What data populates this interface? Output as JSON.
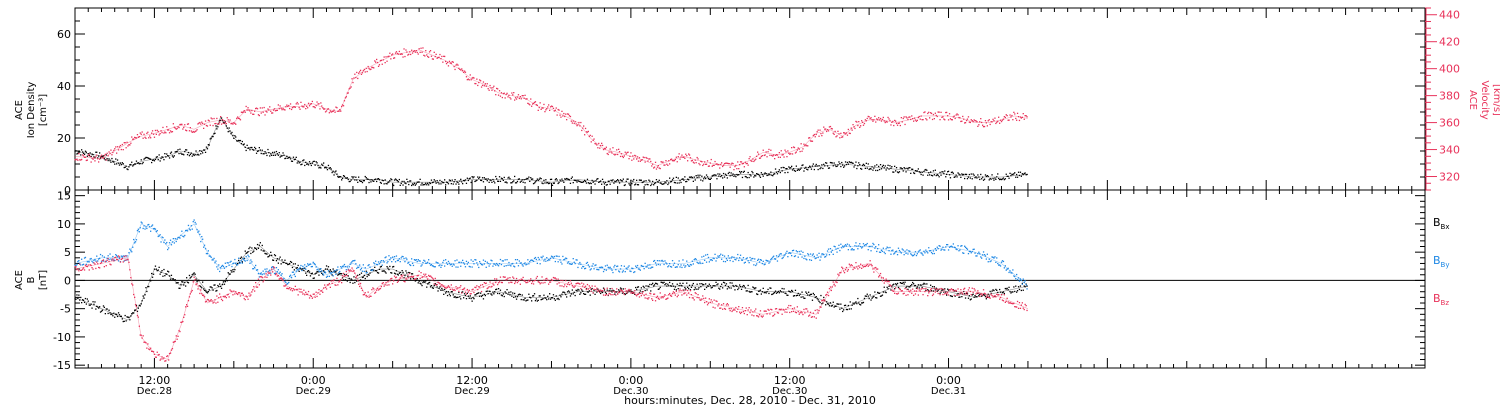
{
  "colors": {
    "black": "#000000",
    "red": "#e8325a",
    "blue": "#1e88e5"
  },
  "xaxis": {
    "title": "hours:minutes, Dec. 28, 2010 - Dec. 31, 2010",
    "range_hours": [
      -6,
      96
    ],
    "ticks": [
      {
        "hours": 0,
        "time": "12:00",
        "date": "Dec.28"
      },
      {
        "hours": 12,
        "time": "0:00",
        "date": "Dec.29"
      },
      {
        "hours": 24,
        "time": "12:00",
        "date": "Dec.29"
      },
      {
        "hours": 36,
        "time": "0:00",
        "date": "Dec.30"
      },
      {
        "hours": 48,
        "time": "12:00",
        "date": "Dec.30"
      },
      {
        "hours": 60,
        "time": "0:00",
        "date": "Dec.31"
      }
    ]
  },
  "chart_data": [
    {
      "type": "line",
      "panel": "top",
      "ylabel_left": [
        "ACE",
        "Ion Density",
        "[cm⁻³]"
      ],
      "ylabel_right": [
        "ACE",
        "Velocity",
        "[km/s]"
      ],
      "ylim_left": [
        0,
        70
      ],
      "yticks_left": [
        0,
        20,
        40,
        60
      ],
      "ylim_right": [
        310,
        445
      ],
      "yticks_right": [
        320,
        340,
        360,
        380,
        400,
        420,
        440
      ],
      "series": [
        {
          "axis": "left",
          "color": "black",
          "x": [
            -6,
            -4,
            -2,
            -1,
            0,
            1,
            2,
            3,
            4,
            5,
            6,
            7,
            8,
            9,
            10,
            11,
            12,
            13,
            14,
            15,
            16,
            17,
            18,
            20,
            22,
            24,
            26,
            28,
            30,
            32,
            34,
            36,
            38,
            40,
            42,
            44,
            46,
            48,
            50,
            52,
            54,
            56,
            58,
            60,
            62,
            64,
            66
          ],
          "y": [
            15,
            13,
            9,
            11,
            12,
            13,
            15,
            14,
            16,
            28,
            20,
            16,
            15,
            14,
            13,
            11,
            10,
            9,
            5,
            4,
            4,
            4,
            3,
            3,
            3,
            4,
            4,
            4,
            3,
            4,
            3,
            3,
            3,
            4,
            5,
            6,
            6,
            8,
            9,
            10,
            9,
            8,
            7,
            6,
            5,
            5,
            6
          ]
        },
        {
          "axis": "right",
          "color": "red",
          "x": [
            -6,
            -4,
            -2,
            -1,
            0,
            1,
            2,
            3,
            4,
            5,
            6,
            7,
            8,
            9,
            10,
            11,
            12,
            13,
            14,
            15,
            16,
            17,
            18,
            19,
            20,
            21,
            22,
            23,
            24,
            25,
            26,
            27,
            28,
            29,
            30,
            31,
            32,
            33,
            34,
            35,
            36,
            37,
            38,
            39,
            40,
            41,
            42,
            43,
            44,
            45,
            46,
            47,
            48,
            49,
            50,
            51,
            52,
            53,
            54,
            55,
            56,
            57,
            58,
            59,
            60,
            61,
            62,
            63,
            64,
            65,
            66
          ],
          "y": [
            335,
            333,
            345,
            350,
            352,
            355,
            358,
            355,
            360,
            362,
            360,
            370,
            368,
            370,
            372,
            372,
            374,
            370,
            368,
            392,
            400,
            405,
            410,
            412,
            414,
            410,
            406,
            400,
            392,
            388,
            382,
            380,
            378,
            372,
            370,
            365,
            360,
            348,
            340,
            338,
            335,
            332,
            328,
            332,
            335,
            332,
            330,
            328,
            328,
            332,
            338,
            336,
            338,
            342,
            352,
            355,
            350,
            358,
            362,
            362,
            360,
            362,
            365,
            365,
            365,
            363,
            360,
            360,
            362,
            365,
            363
          ]
        }
      ]
    },
    {
      "type": "line",
      "panel": "bottom",
      "ylabel_left": [
        "ACE",
        "B",
        "[nT]"
      ],
      "ylim": [
        -15.5,
        16
      ],
      "yticks": [
        -15,
        -10,
        -5,
        0,
        5,
        10,
        15
      ],
      "zero_line": true,
      "series": [
        {
          "name": "Bx",
          "color": "black",
          "x": [
            -6,
            -4,
            -2,
            -1,
            0,
            1,
            2,
            3,
            4,
            5,
            6,
            7,
            8,
            9,
            10,
            11,
            12,
            13,
            14,
            15,
            16,
            17,
            18,
            20,
            22,
            24,
            26,
            28,
            30,
            32,
            34,
            36,
            38,
            40,
            42,
            44,
            46,
            48,
            50,
            52,
            54,
            56,
            58,
            60,
            62,
            64,
            66
          ],
          "y": [
            -3,
            -5,
            -7,
            -4,
            2,
            1,
            -1,
            1,
            -2,
            -1,
            2,
            5,
            6,
            4,
            3,
            2,
            1,
            2,
            1,
            0,
            1,
            2,
            2,
            0,
            -2,
            -3,
            -2,
            -3,
            -3,
            -2,
            -2,
            -2,
            -1,
            -1,
            -1,
            -1,
            -2,
            -2,
            -3,
            -5,
            -3,
            -1,
            -1,
            -2,
            -3,
            -2,
            -1
          ]
        },
        {
          "name": "By",
          "color": "blue",
          "x": [
            -6,
            -4,
            -2,
            -1,
            0,
            1,
            2,
            3,
            4,
            5,
            6,
            7,
            8,
            9,
            10,
            11,
            12,
            13,
            14,
            15,
            16,
            17,
            18,
            20,
            22,
            24,
            26,
            28,
            30,
            32,
            34,
            36,
            38,
            40,
            42,
            44,
            46,
            48,
            50,
            52,
            54,
            56,
            58,
            60,
            62,
            64,
            66
          ],
          "y": [
            3,
            4,
            4,
            10,
            9,
            6,
            8,
            10,
            5,
            2,
            3,
            4,
            1,
            2,
            0,
            2,
            3,
            1,
            2,
            3,
            2,
            3,
            4,
            3,
            3,
            3,
            3,
            3,
            4,
            3,
            2,
            2,
            3,
            3,
            4,
            4,
            3,
            5,
            4,
            6,
            6,
            5,
            5,
            6,
            5,
            3,
            -1
          ]
        },
        {
          "name": "Bz",
          "color": "red",
          "x": [
            -6,
            -4,
            -2,
            -1,
            0,
            1,
            2,
            3,
            4,
            5,
            6,
            7,
            8,
            9,
            10,
            11,
            12,
            13,
            14,
            15,
            16,
            17,
            18,
            20,
            22,
            24,
            26,
            28,
            30,
            32,
            34,
            36,
            38,
            40,
            42,
            44,
            46,
            48,
            50,
            52,
            54,
            56,
            58,
            60,
            62,
            64,
            66
          ],
          "y": [
            2,
            3,
            4,
            -10,
            -13,
            -14,
            -8,
            0,
            -4,
            -3,
            -2,
            -3,
            0,
            2,
            -1,
            -2,
            -3,
            -1,
            0,
            2,
            -3,
            -1,
            0,
            1,
            -1,
            -2,
            0,
            0,
            0,
            -1,
            -2,
            -2,
            -3,
            -2,
            -4,
            -5,
            -6,
            -5,
            -6,
            2,
            3,
            -2,
            -2,
            -2,
            -2,
            -3,
            -5
          ]
        }
      ],
      "legend": [
        "Bx",
        "By",
        "Bz"
      ]
    }
  ]
}
